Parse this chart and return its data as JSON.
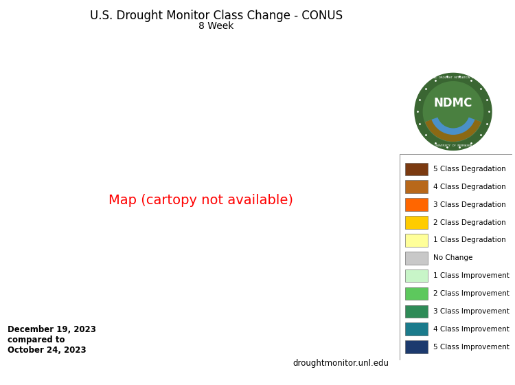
{
  "title_line1": "U.S. Drought Monitor Class Change - CONUS",
  "title_line2": "8 Week",
  "date_text": "December 19, 2023\ncompared to\nOctober 24, 2023",
  "website_text": "droughtmonitor.unl.edu",
  "legend_entries": [
    {
      "label": "5 Class Degradation",
      "color": "#7B3A10"
    },
    {
      "label": "4 Class Degradation",
      "color": "#B8681A"
    },
    {
      "label": "3 Class Degradation",
      "color": "#FF6600"
    },
    {
      "label": "2 Class Degradation",
      "color": "#FFCC00"
    },
    {
      "label": "1 Class Degradation",
      "color": "#FFFF99"
    },
    {
      "label": "No Change",
      "color": "#C8C8C8"
    },
    {
      "label": "1 Class Improvement",
      "color": "#C8F5C8"
    },
    {
      "label": "2 Class Improvement",
      "color": "#5DC85D"
    },
    {
      "label": "3 Class Improvement",
      "color": "#2E8B57"
    },
    {
      "label": "4 Class Improvement",
      "color": "#1B7B8C"
    },
    {
      "label": "5 Class Improvement",
      "color": "#1C3A6E"
    }
  ],
  "map_extent": [
    -125,
    -66,
    24,
    50
  ],
  "projection_lon": -96,
  "projection_lat": 37.5,
  "standard_parallels": [
    29.5,
    45.5
  ],
  "background_color": "#FFFFFF",
  "title_fontsize": 12,
  "subtitle_fontsize": 10,
  "legend_fontsize": 7.5,
  "date_fontsize": 8.5,
  "website_fontsize": 8.5,
  "ndmc_outer_color": "#3A6632",
  "ndmc_inner_color": "#4A8040",
  "ndmc_text_color": "#FFFFFF",
  "ndmc_wave_color": "#4A90C8",
  "ndmc_ground_color": "#8B6914"
}
